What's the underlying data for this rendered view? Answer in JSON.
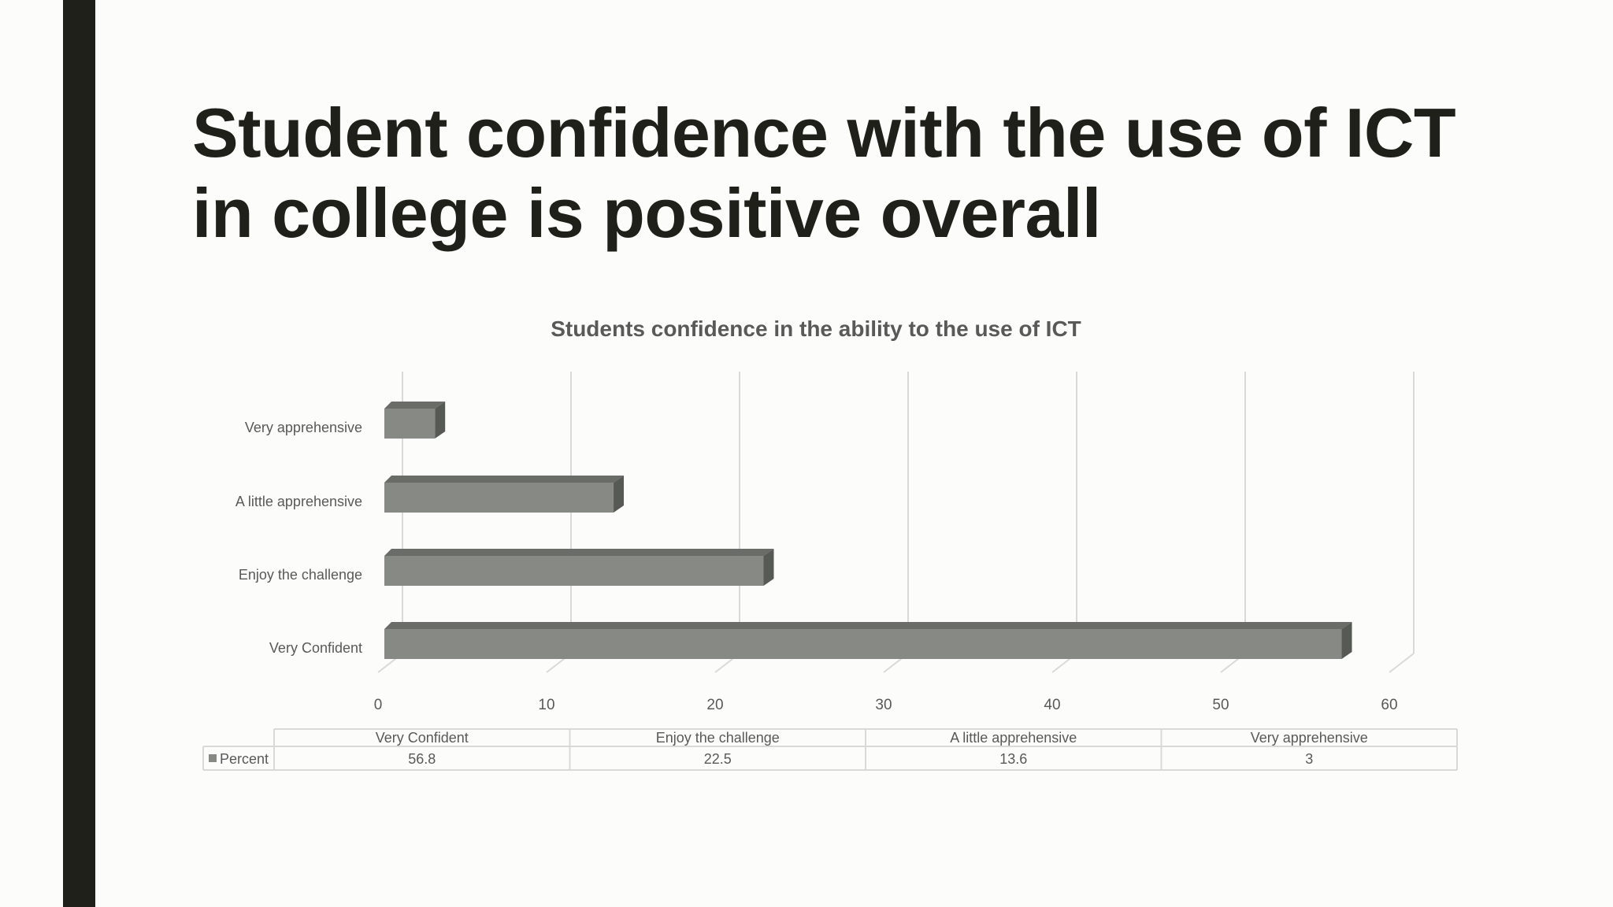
{
  "slide": {
    "title": "Student confidence with the use of ICT in college is positive overall"
  },
  "colors": {
    "accent_bar": "#1e2019",
    "background": "#fcfdfb",
    "bar_front": "#878984",
    "bar_top": "#6a6c68",
    "bar_side": "#575955",
    "grid": "#d9d9d9",
    "text": "#595959"
  },
  "chart_data": {
    "type": "bar",
    "orientation": "horizontal",
    "style": "3d",
    "title": "Students confidence in the ability to the use of ICT",
    "categories": [
      "Very Confident",
      "Enjoy the challenge",
      "A little apprehensive",
      "Very apprehensive"
    ],
    "series": [
      {
        "name": "Percent",
        "values": [
          56.8,
          22.5,
          13.6,
          3
        ]
      }
    ],
    "xlim": [
      0,
      60
    ],
    "xticks": [
      0,
      10,
      20,
      30,
      40,
      50,
      60
    ],
    "grid": true,
    "data_table": true,
    "legend": "in data table"
  }
}
